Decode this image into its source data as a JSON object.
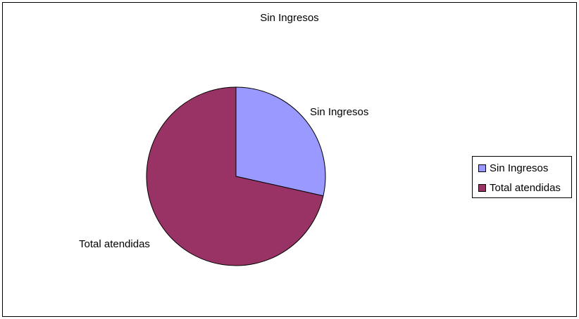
{
  "chart_data": {
    "type": "pie",
    "title": "Sin Ingresos",
    "slices": [
      {
        "label": "Sin Ingresos",
        "value": 28.5,
        "color": "#9999ff"
      },
      {
        "label": "Total atendidas",
        "value": 71.5,
        "color": "#993366"
      }
    ],
    "legend_position": "right"
  }
}
